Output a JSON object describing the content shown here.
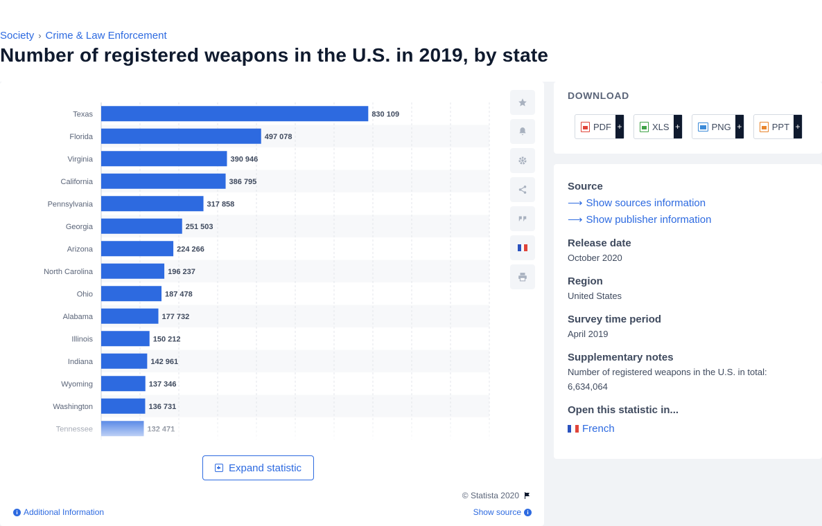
{
  "breadcrumb": {
    "items": [
      "Society",
      "Crime & Law Enforcement"
    ],
    "sep": "›"
  },
  "title": "Number of registered weapons in the U.S. in 2019, by state",
  "chart_data": {
    "type": "bar",
    "orientation": "horizontal",
    "categories": [
      "Texas",
      "Florida",
      "Virginia",
      "California",
      "Pennsylvania",
      "Georgia",
      "Arizona",
      "North Carolina",
      "Ohio",
      "Alabama",
      "Illinois",
      "Indiana",
      "Wyoming",
      "Washington",
      "Tennessee"
    ],
    "values": [
      830109,
      497078,
      390946,
      386795,
      317858,
      251503,
      224266,
      196237,
      187478,
      177732,
      150212,
      142961,
      137346,
      136731,
      132471
    ],
    "value_labels": [
      "830 109",
      "497 078",
      "390 946",
      "386 795",
      "317 858",
      "251 503",
      "224 266",
      "196 237",
      "187 478",
      "177 732",
      "150 212",
      "142 961",
      "137 346",
      "136 731",
      "132 471"
    ],
    "xlim": [
      0,
      1000000
    ],
    "grid": true,
    "bar_color": "#2d6ae0"
  },
  "tools": {
    "icons": [
      "star-icon",
      "bell-icon",
      "gear-icon",
      "share-icon",
      "quote-icon",
      "flag-fr-icon",
      "print-icon"
    ]
  },
  "expand": {
    "label": "Expand statistic"
  },
  "footer": {
    "copyright": "© Statista 2020",
    "additional": "Additional Information",
    "show_source": "Show source"
  },
  "download": {
    "title": "DOWNLOAD",
    "buttons": [
      {
        "label": "PDF",
        "plus": "+",
        "color": "#e0453a"
      },
      {
        "label": "XLS",
        "plus": "+",
        "color": "#3fa247"
      },
      {
        "label": "PNG",
        "plus": "+",
        "color": "#3b8ad8"
      },
      {
        "label": "PPT",
        "plus": "+",
        "color": "#e8842c"
      }
    ]
  },
  "info": {
    "source_heading": "Source",
    "source_link": "Show sources information",
    "publisher_link": "Show publisher information",
    "release_heading": "Release date",
    "release_value": "October 2020",
    "region_heading": "Region",
    "region_value": "United States",
    "survey_heading": "Survey time period",
    "survey_value": "April 2019",
    "notes_heading": "Supplementary notes",
    "notes_value": "Number of registered weapons in the U.S. in total: 6,634,064",
    "open_heading": "Open this statistic in...",
    "open_link": "French"
  }
}
